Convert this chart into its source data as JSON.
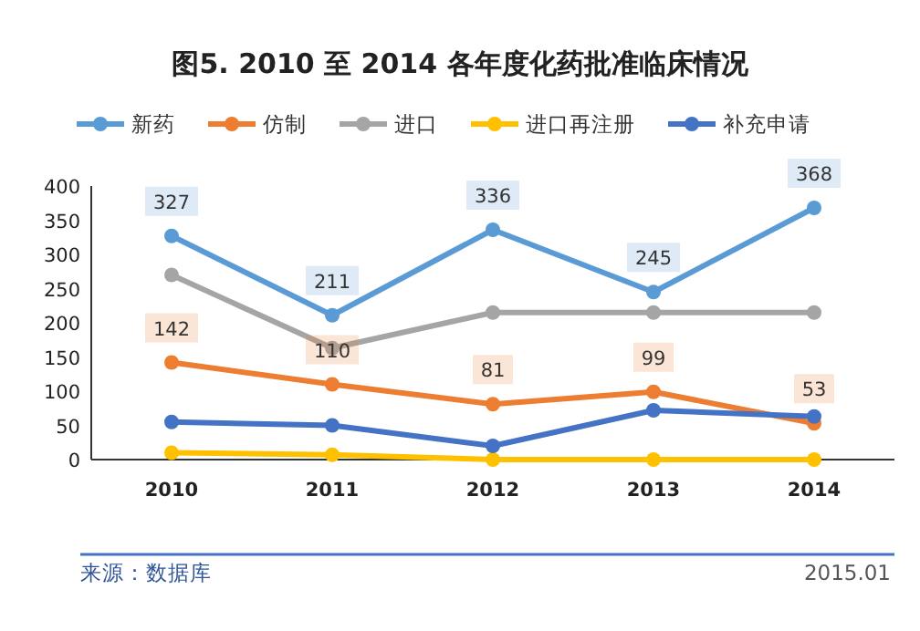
{
  "chart_data": {
    "type": "line",
    "title": "图5. 2010 至 2014 各年度化药批准临床情况",
    "categories": [
      "2010",
      "2011",
      "2012",
      "2013",
      "2014"
    ],
    "series": [
      {
        "name": "新药",
        "color": "#5b9bd5",
        "values": [
          327,
          211,
          336,
          245,
          368
        ],
        "value_labels": [
          "327",
          "211",
          "336",
          "245",
          "368"
        ]
      },
      {
        "name": "仿制",
        "color": "#ed7d31",
        "values": [
          142,
          110,
          81,
          99,
          53
        ],
        "value_labels": [
          "142",
          "110",
          "81",
          "99",
          "53"
        ]
      },
      {
        "name": "进口",
        "color": "#a5a5a5",
        "values": [
          270,
          163,
          215,
          215,
          215
        ]
      },
      {
        "name": "进口再注册",
        "color": "#ffc000",
        "values": [
          10,
          7,
          0,
          0,
          0
        ]
      },
      {
        "name": "补充申请",
        "color": "#4472c4",
        "values": [
          55,
          50,
          20,
          72,
          63
        ]
      }
    ],
    "ylim": [
      0,
      400
    ],
    "yticks": [
      0,
      50,
      100,
      150,
      200,
      250,
      300,
      350,
      400
    ],
    "grid": false,
    "legend": "top",
    "marker": "circle",
    "line_style": "solid",
    "annotations": [
      "来源：数据库",
      "2015.01"
    ]
  }
}
